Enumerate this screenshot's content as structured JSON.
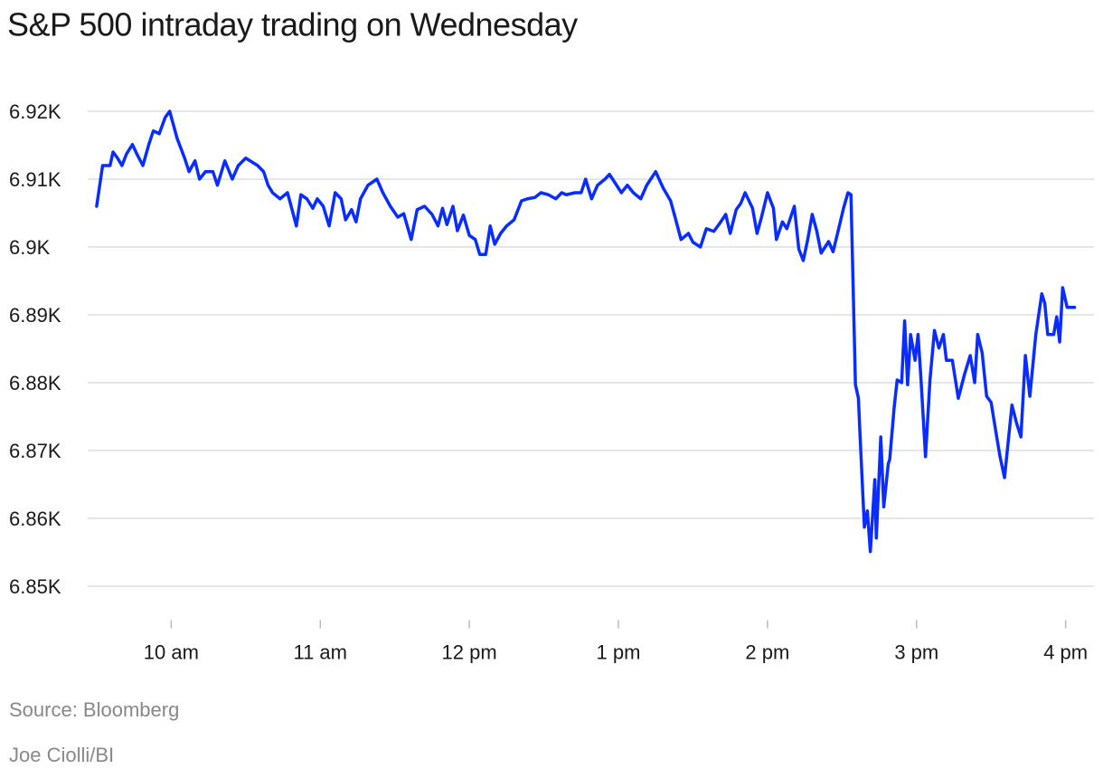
{
  "chart_data": {
    "type": "line",
    "title": "S&P 500 intraday trading on Wednesday",
    "source": "Source: Bloomberg",
    "credit": "Joe Ciolli/BI",
    "color": "#0a2dff",
    "grid": true,
    "x": [
      9.5,
      9.54,
      9.59,
      9.61,
      9.64,
      9.67,
      9.7,
      9.74,
      9.77,
      9.81,
      9.85,
      9.88,
      9.92,
      9.96,
      9.99,
      10.04,
      10.09,
      10.12,
      10.16,
      10.19,
      10.23,
      10.28,
      10.31,
      10.36,
      10.41,
      10.45,
      10.5,
      10.58,
      10.62,
      10.65,
      10.68,
      10.73,
      10.78,
      10.8,
      10.84,
      10.87,
      10.91,
      10.95,
      10.98,
      11.02,
      11.06,
      11.1,
      11.14,
      11.17,
      11.21,
      11.24,
      11.27,
      11.32,
      11.38,
      11.42,
      11.47,
      11.52,
      11.56,
      11.61,
      11.65,
      11.7,
      11.75,
      11.79,
      11.82,
      11.85,
      11.89,
      11.92,
      11.96,
      12.0,
      12.04,
      12.07,
      12.11,
      12.14,
      12.17,
      12.21,
      12.25,
      12.3,
      12.35,
      12.39,
      12.44,
      12.48,
      12.53,
      12.58,
      12.62,
      12.65,
      12.71,
      12.75,
      12.78,
      12.82,
      12.86,
      12.91,
      12.94,
      12.97,
      13.02,
      13.06,
      13.1,
      13.15,
      13.19,
      13.25,
      13.3,
      13.35,
      13.38,
      13.42,
      13.47,
      13.5,
      13.55,
      13.59,
      13.64,
      13.68,
      13.72,
      13.75,
      13.79,
      13.82,
      13.85,
      13.9,
      13.93,
      13.96,
      14.0,
      14.04,
      14.06,
      14.1,
      14.13,
      14.18,
      14.21,
      14.24,
      14.27,
      14.3,
      14.33,
      14.36,
      14.41,
      14.44,
      14.47,
      14.51,
      14.54,
      14.56,
      14.59,
      14.61,
      14.62,
      14.65,
      14.67,
      14.69,
      14.72,
      14.73,
      14.76,
      14.78,
      14.81,
      14.82,
      14.85,
      14.87,
      14.9,
      14.92,
      14.94,
      14.96,
      14.99,
      15.01,
      15.03,
      15.06,
      15.09,
      15.12,
      15.15,
      15.18,
      15.2,
      15.24,
      15.28,
      15.32,
      15.36,
      15.39,
      15.41,
      15.44,
      15.47,
      15.5,
      15.54,
      15.56,
      15.59,
      15.64,
      15.67,
      15.7,
      15.73,
      15.76,
      15.8,
      15.84,
      15.86,
      15.88,
      15.92,
      15.94,
      15.96,
      15.98,
      16.01,
      16.06
    ],
    "values": [
      6906,
      6912,
      6912,
      6914,
      6913.1,
      6912,
      6913.7,
      6915.1,
      6913.7,
      6912,
      6915.1,
      6917.1,
      6916.7,
      6919.1,
      6920,
      6916,
      6913.1,
      6911.1,
      6912.7,
      6910,
      6911.1,
      6911.1,
      6909.1,
      6912.7,
      6910,
      6912,
      6913.1,
      6912,
      6911.1,
      6909.1,
      6908,
      6907.1,
      6908,
      6906.4,
      6903.1,
      6907.7,
      6907.1,
      6905.7,
      6907.1,
      6906,
      6903.1,
      6908,
      6907.1,
      6904,
      6905.5,
      6903.7,
      6907.1,
      6909.1,
      6910,
      6908,
      6906,
      6904.4,
      6904.9,
      6901.1,
      6905.5,
      6906,
      6904.8,
      6903.1,
      6905.7,
      6903.3,
      6906,
      6902.4,
      6904.7,
      6901.7,
      6901.1,
      6898.9,
      6898.9,
      6903.1,
      6900.4,
      6902,
      6903.1,
      6904,
      6906.8,
      6907.1,
      6907.3,
      6908,
      6907.7,
      6907.1,
      6908,
      6907.7,
      6908,
      6908,
      6910,
      6907.1,
      6909.1,
      6910,
      6910.7,
      6909.7,
      6908,
      6909.1,
      6908,
      6907.1,
      6909.1,
      6911.1,
      6908.7,
      6906.8,
      6904.4,
      6901.1,
      6902,
      6900.7,
      6900,
      6902.7,
      6902.3,
      6903.5,
      6904.8,
      6902,
      6905.5,
      6906.4,
      6908,
      6905.7,
      6902,
      6904.4,
      6908,
      6905.7,
      6901.1,
      6903.7,
      6902.7,
      6906,
      6899.7,
      6898,
      6901.1,
      6904.8,
      6902.4,
      6899.1,
      6900.8,
      6899.3,
      6902,
      6905.7,
      6908,
      6907.7,
      6879.7,
      6877.7,
      6872.7,
      6858.7,
      6861.1,
      6855.1,
      6865.7,
      6857.1,
      6872,
      6861.7,
      6868,
      6868.7,
      6876.4,
      6880.4,
      6880,
      6889.1,
      6879.7,
      6887.1,
      6883.3,
      6887.1,
      6880.4,
      6869.1,
      6880.4,
      6887.7,
      6885.1,
      6887.1,
      6883.3,
      6883.3,
      6877.7,
      6881.1,
      6884,
      6880,
      6887.1,
      6884.4,
      6878,
      6877.1,
      6871.7,
      6869.1,
      6866,
      6876.7,
      6874.1,
      6872,
      6884,
      6878,
      6887.1,
      6893.1,
      6891.7,
      6887.1,
      6887.1,
      6889.7,
      6886,
      6894,
      6891.1,
      6891.1
    ],
    "xlim": [
      9.44,
      16.19
    ],
    "ylim": [
      6845,
      6923
    ],
    "xticks": [
      {
        "value": 10,
        "label": "10 am"
      },
      {
        "value": 11,
        "label": "11 am"
      },
      {
        "value": 12,
        "label": "12 pm"
      },
      {
        "value": 13,
        "label": "1 pm"
      },
      {
        "value": 14,
        "label": "2 pm"
      },
      {
        "value": 15,
        "label": "3 pm"
      },
      {
        "value": 16,
        "label": "4 pm"
      }
    ],
    "yticks": [
      {
        "value": 6850,
        "label": "6.85K"
      },
      {
        "value": 6860,
        "label": "6.86K"
      },
      {
        "value": 6870,
        "label": "6.87K"
      },
      {
        "value": 6880,
        "label": "6.88K"
      },
      {
        "value": 6890,
        "label": "6.89K"
      },
      {
        "value": 6900,
        "label": "6.9K"
      },
      {
        "value": 6910,
        "label": "6.91K"
      },
      {
        "value": 6920,
        "label": "6.92K"
      }
    ]
  }
}
